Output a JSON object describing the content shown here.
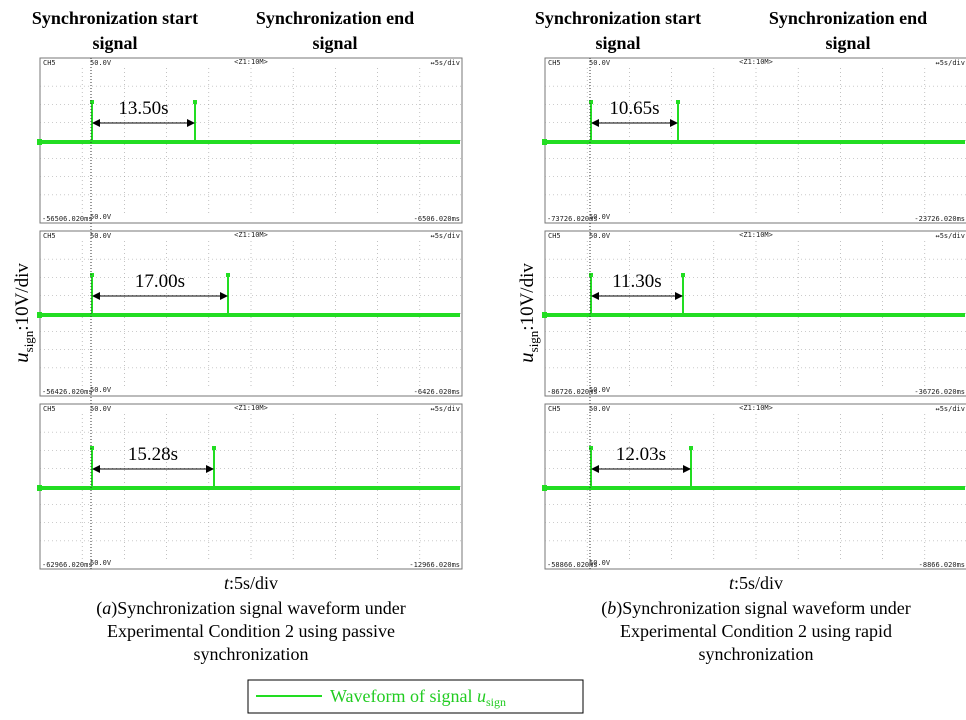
{
  "columns": [
    {
      "headings": {
        "start": [
          "Synchronization start",
          "signal"
        ],
        "end": [
          "Synchronization end",
          "signal"
        ]
      },
      "panels": [
        {
          "channel": "CH5",
          "top_voltage": "50.0V",
          "zoom": "<Z1:10M>",
          "timebase": "↔5s/div",
          "start_time": "-56506.020ms",
          "bottom_voltage": "50.0V",
          "end_time": "-6506.020ms",
          "interval": "13.50s"
        },
        {
          "channel": "CH5",
          "top_voltage": "50.0V",
          "zoom": "<Z1:10M>",
          "timebase": "↔5s/div",
          "start_time": "-56426.020ms",
          "bottom_voltage": "50.0V",
          "end_time": "-6426.020ms",
          "interval": "17.00s"
        },
        {
          "channel": "CH5",
          "top_voltage": "50.0V",
          "zoom": "<Z1:10M>",
          "timebase": "↔5s/div",
          "start_time": "-62966.020ms",
          "bottom_voltage": "50.0V",
          "end_time": "-12966.020ms",
          "interval": "15.28s"
        }
      ],
      "y_label": {
        "symbol": "u",
        "subscript": "sign",
        "unit": ":10V/div"
      },
      "x_label": {
        "symbol": "t",
        "unit": ":5s/div"
      },
      "caption": {
        "label": "a",
        "lines": [
          "Synchronization signal waveform under",
          "Experimental Condition 2 using passive",
          "synchronization"
        ]
      }
    },
    {
      "headings": {
        "start": [
          "Synchronization start",
          "signal"
        ],
        "end": [
          "Synchronization end",
          "signal"
        ]
      },
      "panels": [
        {
          "channel": "CH5",
          "top_voltage": "50.0V",
          "zoom": "<Z1:10M>",
          "timebase": "↔5s/div",
          "start_time": "-73726.020ms",
          "bottom_voltage": "50.0V",
          "end_time": "-23726.020ms",
          "interval": "10.65s"
        },
        {
          "channel": "CH5",
          "top_voltage": "50.0V",
          "zoom": "<Z1:10M>",
          "timebase": "↔5s/div",
          "start_time": "-86726.020ms",
          "bottom_voltage": "50.0V",
          "end_time": "-36726.020ms",
          "interval": "11.30s"
        },
        {
          "channel": "CH5",
          "top_voltage": "50.0V",
          "zoom": "<Z1:10M>",
          "timebase": "↔5s/div",
          "start_time": "-58866.020ms",
          "bottom_voltage": "50.0V",
          "end_time": "-8866.020ms",
          "interval": "12.03s"
        }
      ],
      "y_label": {
        "symbol": "u",
        "subscript": "sign",
        "unit": ":10V/div"
      },
      "x_label": {
        "symbol": "t",
        "unit": ":5s/div"
      },
      "caption": {
        "label": "b",
        "lines": [
          "Synchronization signal waveform under",
          "Experimental Condition 2 using rapid",
          "synchronization"
        ]
      }
    }
  ],
  "legend": {
    "text": "Waveform of signal ",
    "symbol": "u",
    "subscript": "sign"
  }
}
